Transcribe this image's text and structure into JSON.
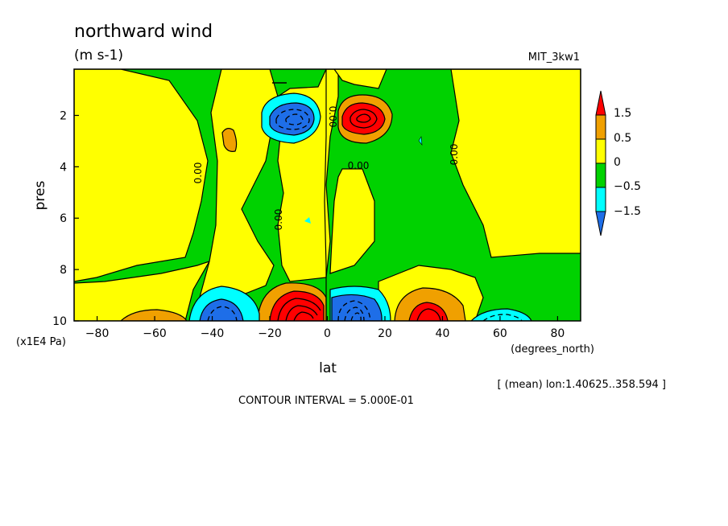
{
  "chart_data": {
    "type": "heatmap",
    "title": "northward wind",
    "units": "(m s-1)",
    "model_label": "MIT_3kw1",
    "xlabel": "lat",
    "x_units_label": "(degrees_north)",
    "ylabel": "pres",
    "y_units_label": "(x1E4 Pa)",
    "xlim": [
      -88,
      88
    ],
    "ylim": [
      0.2,
      10
    ],
    "y_inverted": true,
    "x_ticks": [
      -80,
      -60,
      -40,
      -20,
      0,
      20,
      40,
      60,
      80
    ],
    "y_ticks": [
      2,
      4,
      6,
      8,
      10
    ],
    "contour_interval_label": "CONTOUR INTERVAL = 5.000E-01",
    "mean_label": "[ (mean) lon:1.40625..358.594 ]",
    "zero_contour_label": "0.00",
    "colorbar": {
      "labels": [
        "1.5",
        "0.5",
        "0",
        "-0.5",
        "-1.5"
      ],
      "levels": [
        -1.5,
        -0.5,
        0,
        0.5,
        1.5
      ],
      "colors": {
        "lt_neg15": "#1e6ee8",
        "neg15_neg05": "#00ffff",
        "neg05_0": "#00d200",
        "0_05": "#ffff00",
        "05_15": "#f0a000",
        "gt_15": "#ff0000"
      }
    },
    "features": [
      {
        "lat": -10,
        "pres": 1.8,
        "value": -1.8,
        "sign": "min"
      },
      {
        "lat": 10,
        "pres": 2.0,
        "value": 1.8,
        "sign": "max"
      },
      {
        "lat": -10,
        "pres": 9.6,
        "value": 3.0,
        "sign": "max"
      },
      {
        "lat": 8,
        "pres": 9.6,
        "value": -3.0,
        "sign": "min"
      },
      {
        "lat": -36,
        "pres": 9.6,
        "value": -1.8,
        "sign": "min"
      },
      {
        "lat": 33,
        "pres": 9.6,
        "value": 1.8,
        "sign": "max"
      }
    ]
  }
}
